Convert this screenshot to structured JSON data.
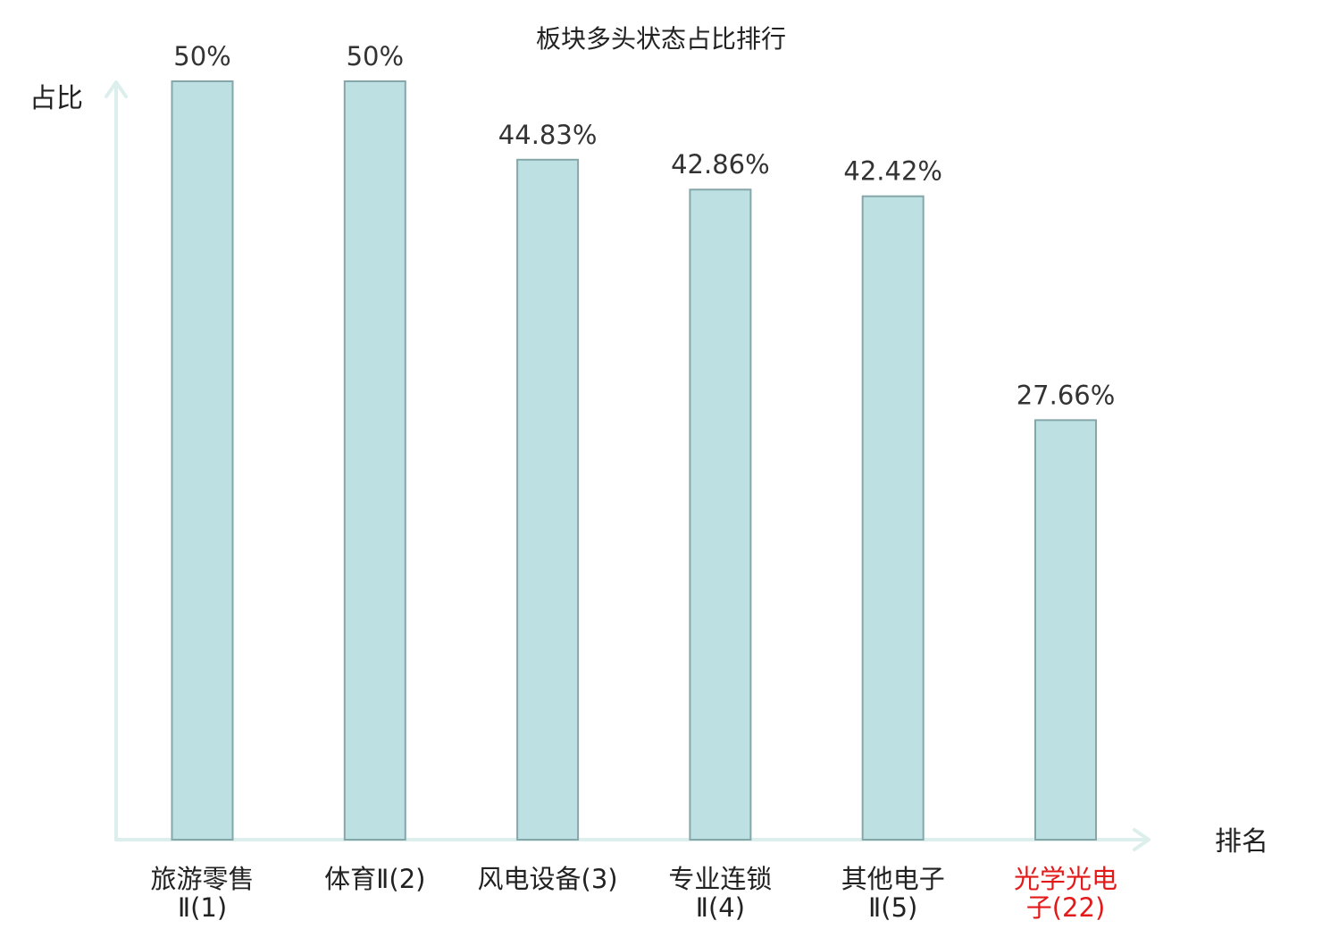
{
  "chart_data": {
    "type": "bar",
    "title": "板块多头状态占比排行",
    "xlabel": "排名",
    "ylabel": "占比",
    "categories": [
      [
        "旅游零售",
        "Ⅱ(1)"
      ],
      [
        "体育Ⅱ(2)"
      ],
      [
        "风电设备(3)"
      ],
      [
        "专业连锁",
        "Ⅱ(4)"
      ],
      [
        "其他电子",
        "Ⅱ(5)"
      ],
      [
        "光学光电",
        "子(22)"
      ]
    ],
    "values": [
      50,
      50,
      44.83,
      42.86,
      42.42,
      27.66
    ],
    "value_labels": [
      "50%",
      "50%",
      "44.83%",
      "42.86%",
      "42.42%",
      "27.66%"
    ],
    "ylim": [
      0,
      50
    ],
    "grid": false,
    "highlight_index": 5,
    "colors": {
      "bar_fill": "#bde0e3",
      "bar_stroke": "#86a7aa",
      "axis": "#dcefec",
      "highlight_text": "#e31a1a",
      "normal_text": "#222222"
    }
  }
}
